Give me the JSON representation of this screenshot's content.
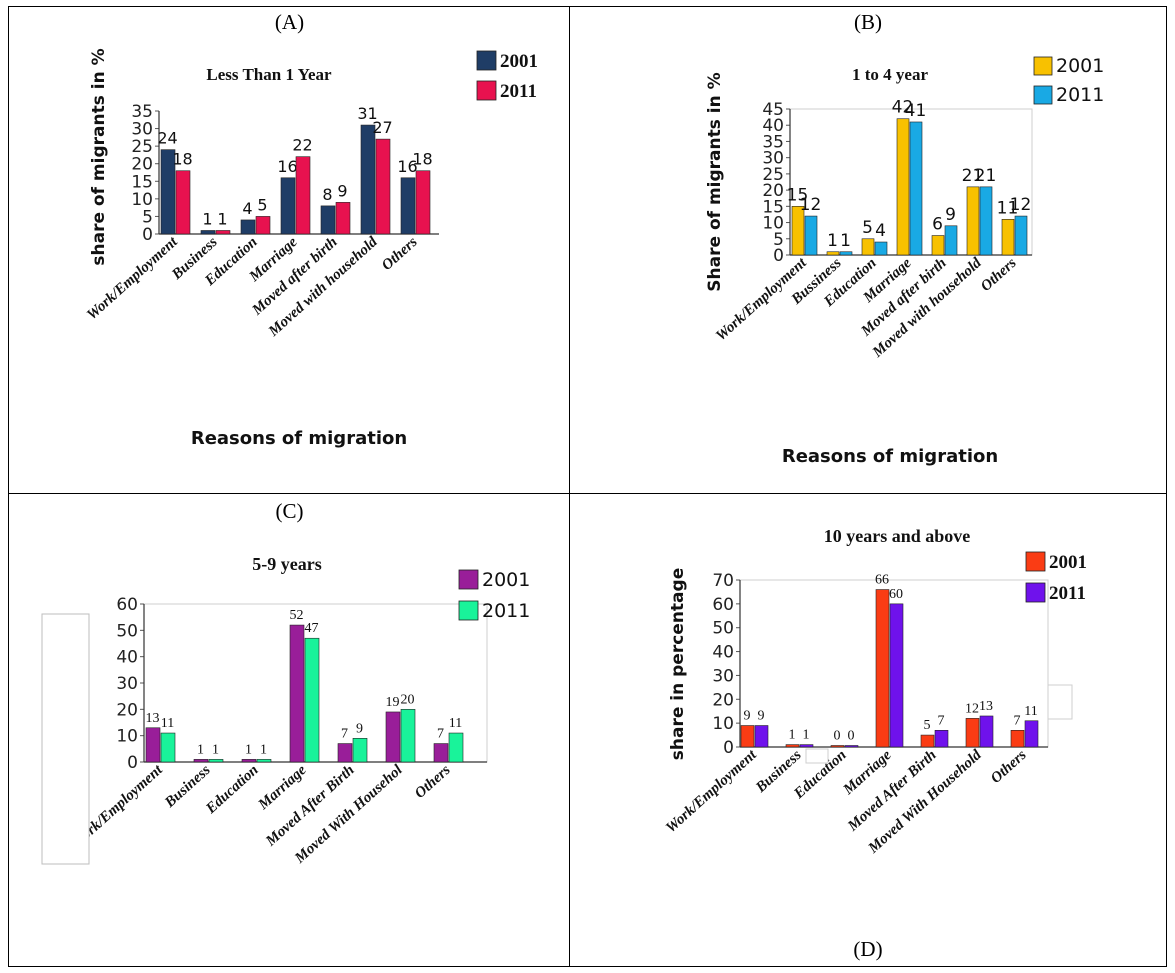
{
  "panels": {
    "a": {
      "label": "(A)"
    },
    "b": {
      "label": "(B)"
    },
    "c": {
      "label": "(C)"
    },
    "d": {
      "label": "(D)"
    }
  },
  "chart_data": [
    {
      "id": "A",
      "type": "bar",
      "title": "Less Than 1 Year",
      "xlabel": "Reasons of migration",
      "ylabel": "share of migrants in %",
      "ylim": [
        0,
        35
      ],
      "yticks": [
        0,
        5,
        10,
        15,
        20,
        25,
        30,
        35
      ],
      "categories": [
        "Work/Employment",
        "Business",
        "Education",
        "Marriage",
        "Moved after birth",
        "Moved with household",
        "Others"
      ],
      "series": [
        {
          "name": "2001",
          "color": "#1f3d66",
          "values": [
            24,
            1,
            4,
            16,
            8,
            31,
            16
          ]
        },
        {
          "name": "2011",
          "color": "#e8124f",
          "values": [
            18,
            1,
            5,
            22,
            9,
            27,
            18
          ]
        }
      ],
      "legend": "top-right",
      "grid": false
    },
    {
      "id": "B",
      "type": "bar",
      "title": "1 to 4 year",
      "xlabel": "Reasons of migration",
      "ylabel": "Share of migrants in %",
      "ylim": [
        0,
        45
      ],
      "yticks": [
        0,
        5,
        10,
        15,
        20,
        25,
        30,
        35,
        40,
        45
      ],
      "categories": [
        "Work/Employment",
        "Bussiness",
        "Education",
        "Marriage",
        "Moved after birth",
        "Moved with household",
        "Others"
      ],
      "series": [
        {
          "name": "2001",
          "color": "#f8c100",
          "values": [
            15,
            1,
            5,
            42,
            6,
            21,
            11
          ]
        },
        {
          "name": "2011",
          "color": "#19a9e4",
          "values": [
            12,
            1,
            4,
            41,
            9,
            21,
            12
          ]
        }
      ],
      "legend": "top-right",
      "grid": false
    },
    {
      "id": "C",
      "type": "bar",
      "title": "5-9 years",
      "xlabel": "",
      "ylabel": "",
      "ylim": [
        0,
        60
      ],
      "yticks": [
        0,
        10,
        20,
        30,
        40,
        50,
        60
      ],
      "categories": [
        "Work/Employment",
        "Business",
        "Education",
        "Marriage",
        "Moved After Birth",
        "Moved With Househol",
        "Others"
      ],
      "series": [
        {
          "name": "2001",
          "color": "#991e99",
          "values": [
            13,
            1,
            1,
            52,
            7,
            19,
            7
          ]
        },
        {
          "name": "2011",
          "color": "#19f39a",
          "values": [
            11,
            1,
            1,
            47,
            9,
            20,
            11
          ]
        }
      ],
      "legend": "top-right",
      "grid": false
    },
    {
      "id": "D",
      "type": "bar",
      "title": "10 years and above",
      "xlabel": "",
      "ylabel": "share in percentage",
      "ylim": [
        0,
        70
      ],
      "yticks": [
        0,
        10,
        20,
        30,
        40,
        50,
        60,
        70
      ],
      "categories": [
        "Work/Employment",
        "Business",
        "Education",
        "Marriage",
        "Moved After Birth",
        "Moved With Household",
        "Others"
      ],
      "series": [
        {
          "name": "2001",
          "color": "#fa3c14",
          "values": [
            9,
            1,
            0,
            66,
            5,
            12,
            7
          ]
        },
        {
          "name": "2011",
          "color": "#6f12ec",
          "values": [
            9,
            1,
            0,
            60,
            7,
            13,
            11
          ]
        }
      ],
      "legend": "top-right",
      "grid": false
    }
  ]
}
